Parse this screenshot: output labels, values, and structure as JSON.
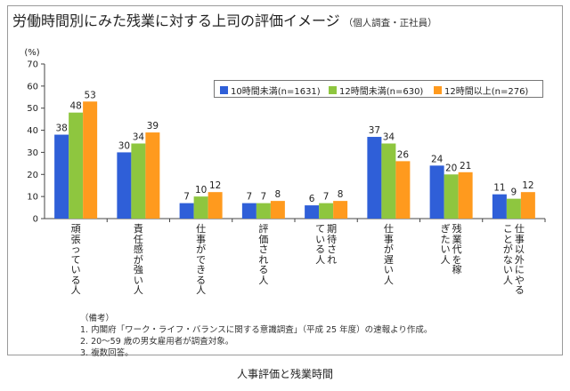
{
  "title": "労働時間別にみた残業に対する上司の評価イメージ",
  "subtitle": "（個人調査・正社員）",
  "caption": "人事評価と残業時間",
  "notes": [
    "（備考）",
    "1. 内閣府「ワーク・ライフ・バランスに関する意識調査」（平成 25 年度）の速報より作成。",
    "2. 20～59 歳の男女雇用者が調査対象。",
    "3. 複数回答。"
  ],
  "chart_data": {
    "type": "bar",
    "ylabel": "(%)",
    "ylim": [
      0,
      70
    ],
    "yticks": [
      0,
      10,
      20,
      30,
      40,
      50,
      60,
      70
    ],
    "grid": false,
    "legend_position": "top-right",
    "categories": [
      "頑張っている人",
      "責任感が強い人",
      "仕事ができる人",
      "評価される人",
      "期待されている人",
      "仕事が遅い人",
      "残業代を稼ぎたい人",
      "仕事以外にやることがない人"
    ],
    "series": [
      {
        "name": "10時間未満(n=1631)",
        "color": "#2f5fd8",
        "values": [
          38,
          30,
          7,
          7,
          6,
          37,
          24,
          11
        ]
      },
      {
        "name": "12時間未満(n=630)",
        "color": "#8ec63f",
        "values": [
          48,
          34,
          10,
          7,
          7,
          34,
          20,
          9
        ]
      },
      {
        "name": "12時間以上(n=276)",
        "color": "#ff9a1e",
        "values": [
          53,
          39,
          12,
          8,
          8,
          26,
          21,
          12
        ]
      }
    ]
  }
}
